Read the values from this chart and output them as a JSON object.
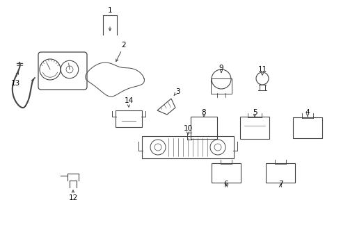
{
  "bg_color": "#ffffff",
  "line_color": "#444444",
  "text_color": "#000000",
  "figsize": [
    4.9,
    3.6
  ],
  "dpi": 100
}
